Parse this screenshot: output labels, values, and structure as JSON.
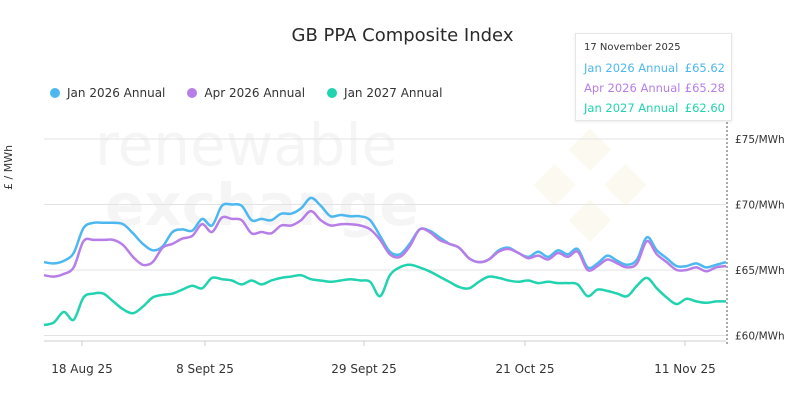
{
  "chart_data": {
    "type": "line",
    "title": "GB PPA Composite Index",
    "ylabel": "£ / MWh",
    "xlabel": "",
    "ylim": [
      59,
      76
    ],
    "y_ticks": [
      {
        "value": 60,
        "label": "£60/MWh"
      },
      {
        "value": 65,
        "label": "£65/MWh"
      },
      {
        "value": 70,
        "label": "£70/MWh"
      },
      {
        "value": 75,
        "label": "£75/MWh"
      }
    ],
    "x_tick_labels": [
      "18 Aug 25",
      "8 Sept 25",
      "29 Sept 25",
      "21 Oct 25",
      "11 Nov 25"
    ],
    "legend_position": "top-left",
    "grid": true,
    "series": [
      {
        "name": "Jan 2026 Annual",
        "color": "#4db8f0",
        "values": [
          65.6,
          65.5,
          65.7,
          66.3,
          68.2,
          68.6,
          68.6,
          68.6,
          68.5,
          67.8,
          67.0,
          66.5,
          66.8,
          67.9,
          68.1,
          68.0,
          68.9,
          68.4,
          69.9,
          70.0,
          69.9,
          68.8,
          68.9,
          68.8,
          69.3,
          69.3,
          69.7,
          70.5,
          69.9,
          69.1,
          69.2,
          69.1,
          69.1,
          68.8,
          67.6,
          66.4,
          66.2,
          67.0,
          68.1,
          68.0,
          67.5,
          67.0,
          66.7,
          65.9,
          65.6,
          65.8,
          66.5,
          66.7,
          66.3,
          66.0,
          66.4,
          66.0,
          66.5,
          66.2,
          66.6,
          65.2,
          65.5,
          66.1,
          65.7,
          65.4,
          65.8,
          67.5,
          66.5,
          65.9,
          65.3,
          65.3,
          65.5,
          65.2,
          65.4,
          65.6
        ]
      },
      {
        "name": "Apr 2026 Annual",
        "color": "#b77ee8",
        "values": [
          64.6,
          64.5,
          64.7,
          65.2,
          67.2,
          67.3,
          67.3,
          67.3,
          66.9,
          66.0,
          65.4,
          65.6,
          66.7,
          67.0,
          67.4,
          67.6,
          68.5,
          67.9,
          69.0,
          68.9,
          68.8,
          67.8,
          67.9,
          67.8,
          68.4,
          68.4,
          68.8,
          69.5,
          68.8,
          68.4,
          68.5,
          68.5,
          68.4,
          68.1,
          67.3,
          66.2,
          66.0,
          66.8,
          68.1,
          67.9,
          67.3,
          67.0,
          66.7,
          65.9,
          65.6,
          65.8,
          66.4,
          66.6,
          66.3,
          65.9,
          66.1,
          65.8,
          66.3,
          66.0,
          66.4,
          65.0,
          65.3,
          65.8,
          65.5,
          65.2,
          65.5,
          67.2,
          66.2,
          65.6,
          65.0,
          65.0,
          65.2,
          64.9,
          65.2,
          65.3
        ]
      },
      {
        "name": "Jan 2027 Annual",
        "color": "#22d3b0",
        "values": [
          60.8,
          61.0,
          61.8,
          61.2,
          62.9,
          63.2,
          63.2,
          62.6,
          62.0,
          61.7,
          62.2,
          62.9,
          63.1,
          63.2,
          63.5,
          63.8,
          63.6,
          64.4,
          64.3,
          64.2,
          63.9,
          64.2,
          63.9,
          64.2,
          64.4,
          64.5,
          64.6,
          64.3,
          64.2,
          64.1,
          64.2,
          64.3,
          64.2,
          64.1,
          63.0,
          64.6,
          65.2,
          65.4,
          65.2,
          64.9,
          64.5,
          64.1,
          63.7,
          63.6,
          64.1,
          64.5,
          64.4,
          64.2,
          64.1,
          64.2,
          64.0,
          64.1,
          64.0,
          64.0,
          63.9,
          63.0,
          63.5,
          63.4,
          63.2,
          63.0,
          63.8,
          64.4,
          63.6,
          62.9,
          62.4,
          62.8,
          62.6,
          62.5,
          62.6,
          62.6
        ]
      }
    ],
    "annotation": {
      "date": "17 November 2025",
      "entries": [
        {
          "label": "Jan 2026 Annual",
          "value": "£65.62",
          "color": "#4db8f0"
        },
        {
          "label": "Apr 2026 Annual",
          "value": "£65.28",
          "color": "#b77ee8"
        },
        {
          "label": "Jan 2027 Annual",
          "value": "£62.60",
          "color": "#22d3b0"
        }
      ]
    }
  },
  "watermark": {
    "line1": "renewable",
    "line2": "exchange"
  }
}
